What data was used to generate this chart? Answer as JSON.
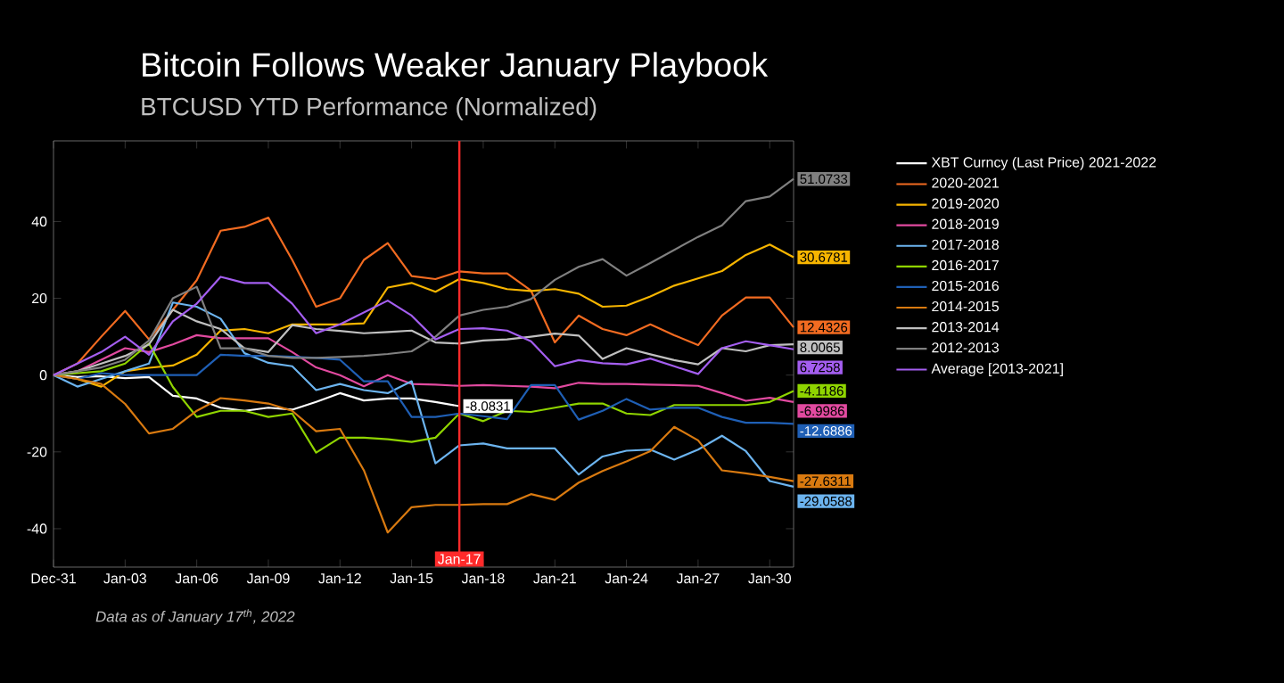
{
  "chart_data": {
    "type": "line",
    "title": "Bitcoin Follows Weaker January Playbook",
    "subtitle": "BTCUSD YTD Performance (Normalized)",
    "annotations": [
      "Data as of January 17$^{th}$, 2022"
    ],
    "x": [
      "2021-12-31",
      "2022-01-01",
      "2022-01-02",
      "2022-01-03",
      "2022-01-04",
      "2022-01-05",
      "2022-01-06",
      "2022-01-07",
      "2022-01-08",
      "2022-01-09",
      "2022-01-10",
      "2022-01-11",
      "2022-01-12",
      "2022-01-13",
      "2022-01-14",
      "2022-01-15",
      "2022-01-16",
      "2022-01-17",
      "2022-01-18",
      "2022-01-19",
      "2022-01-20",
      "2022-01-21",
      "2022-01-22",
      "2022-01-23",
      "2022-01-24",
      "2022-01-25",
      "2022-01-26",
      "2022-01-27",
      "2022-01-28",
      "2022-01-29",
      "2022-01-30",
      "2022-01-31"
    ],
    "xlim": [
      "2021-12-31",
      "2022-01-31"
    ],
    "xticks": [
      {
        "value": "2021-12-31",
        "label": "Dec-31"
      },
      {
        "value": "2022-01-03",
        "label": "Jan-03"
      },
      {
        "value": "2022-01-06",
        "label": "Jan-06"
      },
      {
        "value": "2022-01-09",
        "label": "Jan-09"
      },
      {
        "value": "2022-01-12",
        "label": "Jan-12"
      },
      {
        "value": "2022-01-15",
        "label": "Jan-15"
      },
      {
        "value": "2022-01-18",
        "label": "Jan-18"
      },
      {
        "value": "2022-01-21",
        "label": "Jan-21"
      },
      {
        "value": "2022-01-24",
        "label": "Jan-24"
      },
      {
        "value": "2022-01-27",
        "label": "Jan-27"
      },
      {
        "value": "2022-01-30",
        "label": "Jan-30"
      }
    ],
    "ylim": [
      -50,
      61
    ],
    "yticks": [
      -40,
      -20,
      0,
      20,
      40
    ],
    "ref_lines": [
      {
        "axis": "x",
        "value": "2022-01-17",
        "label": "Jan-17",
        "color": "#ff2a2a"
      }
    ],
    "legend": "right",
    "grid": false,
    "marker": "none",
    "line_style": "solid",
    "series": [
      {
        "name": "XBT Curncy (Last Price) 2021-2022",
        "color": "#ffffff",
        "values": [
          0,
          -0.5,
          -0.3,
          -0.8,
          -0.5,
          -5.4,
          -6.1,
          -8.5,
          -9.3,
          -8.5,
          -9.0,
          -7,
          -4.7,
          -6.6,
          -6.1,
          -6.1,
          -7.0,
          -8.0831,
          null,
          null,
          null,
          null,
          null,
          null,
          null,
          null,
          null,
          null,
          null,
          null,
          null,
          null
        ],
        "value_labels": [
          null,
          null,
          null,
          null,
          null,
          null,
          null,
          null,
          null,
          null,
          null,
          null,
          null,
          null,
          null,
          null,
          null,
          "-8.0831",
          null,
          null,
          null,
          null,
          null,
          null,
          null,
          null,
          null,
          null,
          null,
          null,
          null,
          null
        ]
      },
      {
        "name": "2020-2021",
        "color": "#f26b21",
        "values": [
          0,
          3,
          10,
          16.7,
          9.3,
          17,
          24.7,
          37.6,
          38.6,
          41,
          30,
          17.8,
          20,
          30,
          34.4,
          25.8,
          25,
          27,
          26.5,
          26.5,
          22,
          8.5,
          15.5,
          12,
          10.4,
          13.2,
          10.4,
          7.8,
          15.5,
          20.2,
          20.2,
          12.4326
        ],
        "value_labels": [
          null,
          null,
          null,
          null,
          null,
          null,
          null,
          null,
          null,
          null,
          null,
          null,
          null,
          null,
          null,
          null,
          null,
          null,
          null,
          null,
          null,
          null,
          null,
          null,
          null,
          null,
          null,
          null,
          null,
          null,
          null,
          "12.4326"
        ]
      },
      {
        "name": "2019-2020",
        "color": "#f7b500",
        "values": [
          0,
          -1,
          -3,
          1,
          1.9,
          2.5,
          5.3,
          11.6,
          12,
          10.9,
          13.2,
          13.2,
          13.2,
          13.5,
          22.8,
          24,
          21.7,
          25,
          24,
          22.4,
          21.9,
          22.4,
          21.2,
          17.8,
          18.1,
          20.5,
          23.3,
          25.2,
          27.1,
          31.3,
          34,
          30.6781
        ],
        "value_labels": [
          null,
          null,
          null,
          null,
          null,
          null,
          null,
          null,
          null,
          null,
          null,
          null,
          null,
          null,
          null,
          null,
          null,
          null,
          null,
          null,
          null,
          null,
          null,
          null,
          null,
          null,
          null,
          null,
          null,
          null,
          null,
          "30.6781"
        ]
      },
      {
        "name": "2018-2019",
        "color": "#e24aa0",
        "values": [
          0,
          1,
          4,
          7,
          6,
          8,
          10.4,
          9.6,
          9.6,
          9.6,
          6,
          2,
          0,
          -2.9,
          0,
          -2.3,
          -2.5,
          -2.8,
          -2.6,
          -2.8,
          -3,
          -3.4,
          -2,
          -2.3,
          -2.3,
          -2.5,
          -2.6,
          -2.8,
          -4.7,
          -6.7,
          -5.9,
          -6.9986
        ],
        "value_labels": [
          null,
          null,
          null,
          null,
          null,
          null,
          null,
          null,
          null,
          null,
          null,
          null,
          null,
          null,
          null,
          null,
          null,
          null,
          null,
          null,
          null,
          null,
          null,
          null,
          null,
          null,
          null,
          null,
          null,
          null,
          null,
          "-6.9986"
        ]
      },
      {
        "name": "2017-2018",
        "color": "#6cb4ef",
        "values": [
          0,
          -3,
          -1,
          1,
          3,
          18.9,
          17.8,
          14.7,
          5.7,
          3.2,
          2.3,
          -3.9,
          -2.3,
          -3.9,
          -4.7,
          -1.6,
          -23,
          -18.3,
          -17.8,
          -19.1,
          -19.1,
          -19.1,
          -25.9,
          -21.2,
          -19.7,
          -19.4,
          -22,
          -19.4,
          -15.8,
          -19.8,
          -27.6,
          -29.0588
        ],
        "value_labels": [
          null,
          null,
          null,
          null,
          null,
          null,
          null,
          null,
          null,
          null,
          null,
          null,
          null,
          null,
          null,
          null,
          null,
          null,
          null,
          null,
          null,
          null,
          null,
          null,
          null,
          null,
          null,
          null,
          null,
          null,
          null,
          "-29.0588"
        ]
      },
      {
        "name": "2016-2017",
        "color": "#8fd400",
        "values": [
          0,
          0.5,
          1,
          3,
          8.2,
          -3.1,
          -10.9,
          -9.3,
          -9.3,
          -10.9,
          -10,
          -20.2,
          -16.3,
          -16.3,
          -16.7,
          -17.4,
          -16.3,
          -10,
          -12,
          -9.3,
          -9.6,
          -8.5,
          -7.4,
          -7.4,
          -10,
          -10.4,
          -7.8,
          -7.8,
          -7.8,
          -7.8,
          -7,
          -4.1186
        ],
        "value_labels": [
          null,
          null,
          null,
          null,
          null,
          null,
          null,
          null,
          null,
          null,
          null,
          null,
          null,
          null,
          null,
          null,
          null,
          null,
          null,
          null,
          null,
          null,
          null,
          null,
          null,
          null,
          null,
          null,
          null,
          null,
          null,
          "-4.1186"
        ]
      },
      {
        "name": "2015-2016",
        "color": "#1f5fb5",
        "values": [
          0,
          -1,
          0.5,
          0,
          0,
          0,
          0,
          5.3,
          5,
          5,
          4.8,
          4.5,
          4,
          -1.6,
          -1.6,
          -10.9,
          -10.9,
          -10,
          -10.7,
          -11.5,
          -2.6,
          -2.6,
          -11.6,
          -9.3,
          -6.2,
          -9,
          -8.5,
          -8.5,
          -10.9,
          -12.4,
          -12.4,
          -12.6886
        ],
        "value_labels": [
          null,
          null,
          null,
          null,
          null,
          null,
          null,
          null,
          null,
          null,
          null,
          null,
          null,
          null,
          null,
          null,
          null,
          null,
          null,
          null,
          null,
          null,
          null,
          null,
          null,
          null,
          null,
          null,
          null,
          null,
          null,
          "-12.6886"
        ]
      },
      {
        "name": "2014-2015",
        "color": "#d97a10",
        "values": [
          0,
          -1,
          -2.3,
          -7.5,
          -15.2,
          -14,
          -9.3,
          -6,
          -6.6,
          -7.4,
          -9.3,
          -14.6,
          -14,
          -24.8,
          -41,
          -34.4,
          -33.8,
          -33.8,
          -33.6,
          -33.6,
          -31,
          -32.5,
          -28,
          -25,
          -22.5,
          -19.8,
          -13.5,
          -17,
          -24.8,
          -25.6,
          -26.5,
          -27.6311
        ],
        "value_labels": [
          null,
          null,
          null,
          null,
          null,
          null,
          null,
          null,
          null,
          null,
          null,
          null,
          null,
          null,
          null,
          null,
          null,
          null,
          null,
          null,
          null,
          null,
          null,
          null,
          null,
          null,
          null,
          null,
          null,
          null,
          null,
          "-27.6311"
        ]
      },
      {
        "name": "2013-2014",
        "color": "#c0c0c0",
        "values": [
          0,
          1,
          3,
          5,
          8,
          17,
          14,
          12,
          7,
          6,
          13,
          12,
          11.5,
          10.9,
          11.2,
          11.6,
          8.5,
          8.2,
          9,
          9.3,
          10,
          10.8,
          10.3,
          4.2,
          7,
          5.4,
          3.9,
          2.8,
          7,
          6.2,
          7.8,
          8.0065
        ],
        "value_labels": [
          null,
          null,
          null,
          null,
          null,
          null,
          null,
          null,
          null,
          null,
          null,
          null,
          null,
          null,
          null,
          null,
          null,
          null,
          null,
          null,
          null,
          null,
          null,
          null,
          null,
          null,
          null,
          null,
          null,
          null,
          null,
          "8.0065"
        ]
      },
      {
        "name": "2012-2013",
        "color": "#808080",
        "values": [
          0,
          1,
          2,
          4,
          9,
          20,
          23,
          7,
          7,
          5,
          4.5,
          4.5,
          4.7,
          5,
          5.5,
          6.2,
          10,
          15.5,
          17,
          17.8,
          19.8,
          24.8,
          28.2,
          30.2,
          25.9,
          29.2,
          32.6,
          36,
          39,
          45.3,
          46.5,
          51.0733
        ],
        "value_labels": [
          null,
          null,
          null,
          null,
          null,
          null,
          null,
          null,
          null,
          null,
          null,
          null,
          null,
          null,
          null,
          null,
          null,
          null,
          null,
          null,
          null,
          null,
          null,
          null,
          null,
          null,
          null,
          null,
          null,
          null,
          null,
          "51.0733"
        ]
      },
      {
        "name": "Average  [2013-2021]",
        "color": "#a45ef0",
        "values": [
          0,
          3,
          6,
          10,
          5.3,
          14,
          18.6,
          25.6,
          24,
          24,
          18.6,
          10.9,
          13.2,
          16.3,
          19.4,
          15.5,
          9.3,
          12,
          12.2,
          11.6,
          8.8,
          2.3,
          3.9,
          3.1,
          2.8,
          4.3,
          2.3,
          0.3,
          7,
          8.8,
          7.8,
          6.7258
        ],
        "value_labels": [
          null,
          null,
          null,
          null,
          null,
          null,
          null,
          null,
          null,
          null,
          null,
          null,
          null,
          null,
          null,
          null,
          null,
          null,
          null,
          null,
          null,
          null,
          null,
          null,
          null,
          null,
          null,
          null,
          null,
          null,
          null,
          "6.7258"
        ]
      }
    ]
  }
}
